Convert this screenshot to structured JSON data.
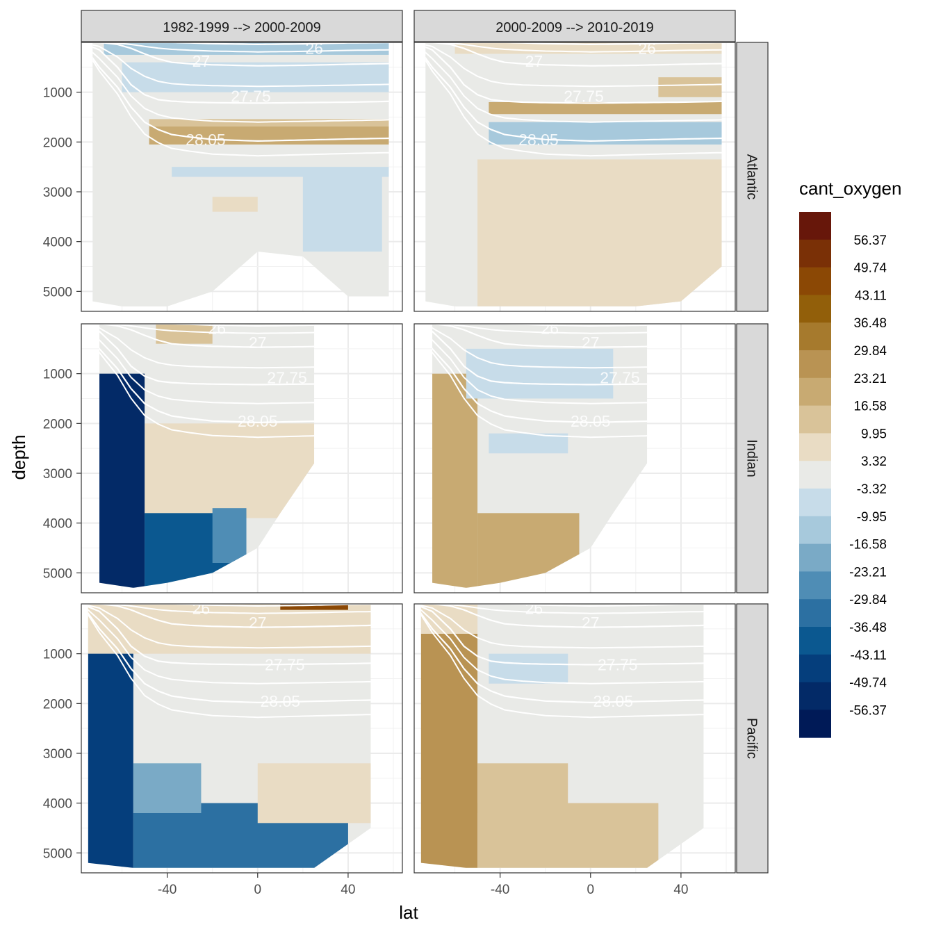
{
  "chart_data": {
    "type": "heatmap",
    "title": "",
    "xlabel": "lat",
    "ylabel": "depth",
    "xlim": [
      -78,
      64
    ],
    "ylim": [
      5400,
      0
    ],
    "x_ticks": [
      -40,
      0,
      40
    ],
    "y_ticks": [
      1000,
      2000,
      3000,
      4000,
      5000
    ],
    "columns": [
      "1982-1999 --> 2000-2009",
      "2000-2009 --> 2010-2019"
    ],
    "rows": [
      "Atlantic",
      "Indian",
      "Pacific"
    ],
    "legend": {
      "title": "cant_oxygen",
      "breaks": [
        "56.37",
        "49.74",
        "43.11",
        "36.48",
        "29.84",
        "23.21",
        "16.58",
        "9.95",
        "3.32",
        "-3.32",
        "-9.95",
        "-16.58",
        "-23.21",
        "-29.84",
        "-36.48",
        "-43.11",
        "-49.74",
        "-56.37"
      ],
      "colors": [
        "#67170a",
        "#7a3006",
        "#8b4805",
        "#925f0a",
        "#a67a2d",
        "#b99353",
        "#c8aa72",
        "#d9c399",
        "#e9dcc4",
        "#e9eae7",
        "#c7dce9",
        "#a7c9dc",
        "#7aaac6",
        "#4f8db5",
        "#2c70a2",
        "#0b5890",
        "#053e7c",
        "#032a67",
        "#001a57"
      ]
    },
    "contour_labels": [
      "26",
      "27",
      "27.75",
      "28.05"
    ],
    "isopycnal_depth_profiles": {
      "lat": [
        -78,
        -70,
        -62,
        -56,
        -50,
        -44,
        -38,
        -30,
        -20,
        0,
        20,
        40,
        64
      ],
      "depth_26": [
        0,
        0,
        0,
        0,
        0,
        0,
        0,
        10,
        25,
        40,
        30,
        10,
        0
      ],
      "depth_27": [
        0,
        0,
        40,
        120,
        230,
        330,
        400,
        430,
        450,
        470,
        460,
        440,
        420
      ],
      "depth_27.75": [
        0,
        150,
        500,
        850,
        1050,
        1150,
        1180,
        1200,
        1210,
        1220,
        1210,
        1200,
        1180
      ],
      "depth_28.05": [
        0,
        500,
        900,
        1300,
        1600,
        1750,
        1850,
        1900,
        1950,
        1980,
        1960,
        1940,
        1920
      ]
    },
    "panels": [
      {
        "row": "Atlantic",
        "column": "1982-1999 --> 2000-2009",
        "label_positions": [
          [
            25,
            120
          ],
          [
            -25,
            380
          ],
          [
            -3,
            1080
          ],
          [
            -23,
            1950
          ]
        ],
        "max_depth": [
          5200,
          5300,
          5300,
          5000,
          4200,
          4300,
          5100,
          5100
        ],
        "max_depth_lat": [
          -73,
          -60,
          -40,
          -20,
          0,
          20,
          40,
          58
        ],
        "regions": [
          {
            "lat": [
              -78,
              64
            ],
            "depth": [
              0,
              5400
            ],
            "value": -1
          },
          {
            "lat": [
              -48,
              62
            ],
            "depth": [
              1680,
              2050
            ],
            "value": 20
          },
          {
            "lat": [
              -48,
              62
            ],
            "depth": [
              1540,
              1690
            ],
            "value": 10
          },
          {
            "lat": [
              -60,
              62
            ],
            "depth": [
              400,
              1000
            ],
            "value": -8
          },
          {
            "lat": [
              -68,
              62
            ],
            "depth": [
              0,
              250
            ],
            "value": -15
          },
          {
            "lat": [
              -38,
              60
            ],
            "depth": [
              2500,
              2700
            ],
            "value": -5
          },
          {
            "lat": [
              20,
              55
            ],
            "depth": [
              2700,
              4200
            ],
            "value": -6
          },
          {
            "lat": [
              -20,
              0
            ],
            "depth": [
              3100,
              3400
            ],
            "value": 5
          }
        ]
      },
      {
        "row": "Atlantic",
        "column": "2000-2009 --> 2010-2019",
        "label_positions": [
          [
            25,
            120
          ],
          [
            -25,
            380
          ],
          [
            -3,
            1080
          ],
          [
            -23,
            1950
          ]
        ],
        "max_depth": [
          5200,
          5300,
          5300,
          5300,
          5300,
          5300,
          5200,
          4500
        ],
        "max_depth_lat": [
          -73,
          -60,
          -40,
          -20,
          0,
          20,
          40,
          58
        ],
        "regions": [
          {
            "lat": [
              -78,
              64
            ],
            "depth": [
              0,
              5400
            ],
            "value": -1
          },
          {
            "lat": [
              -50,
              62
            ],
            "depth": [
              2350,
              5300
            ],
            "value": 6
          },
          {
            "lat": [
              -45,
              62
            ],
            "depth": [
              1200,
              1440
            ],
            "value": 18
          },
          {
            "lat": [
              -45,
              62
            ],
            "depth": [
              1600,
              2050
            ],
            "value": -12
          },
          {
            "lat": [
              -60,
              62
            ],
            "depth": [
              0,
              230
            ],
            "value": 8
          },
          {
            "lat": [
              30,
              60
            ],
            "depth": [
              700,
              1100
            ],
            "value": 12
          }
        ]
      },
      {
        "row": "Indian",
        "column": "1982-1999 --> 2000-2009",
        "label_positions": [
          [
            -18,
            90
          ],
          [
            0,
            380
          ],
          [
            13,
            1080
          ],
          [
            0,
            1950
          ]
        ],
        "max_depth": [
          5200,
          5300,
          5200,
          5000,
          4500,
          3800,
          2800
        ],
        "max_depth_lat": [
          -70,
          -55,
          -40,
          -20,
          0,
          10,
          25
        ],
        "regions": [
          {
            "lat": [
              -70,
              25
            ],
            "depth": [
              0,
              5400
            ],
            "value": -1
          },
          {
            "lat": [
              -50,
              25
            ],
            "depth": [
              2000,
              3900
            ],
            "value": 6
          },
          {
            "lat": [
              -70,
              -50
            ],
            "depth": [
              1000,
              5300
            ],
            "value": -50
          },
          {
            "lat": [
              -50,
              -5
            ],
            "depth": [
              3800,
              5300
            ],
            "value": -40
          },
          {
            "lat": [
              -20,
              -5
            ],
            "depth": [
              3700,
              4800
            ],
            "value": -25
          },
          {
            "lat": [
              -45,
              -20
            ],
            "depth": [
              0,
              400
            ],
            "value": 15
          }
        ]
      },
      {
        "row": "Indian",
        "column": "2000-2009 --> 2010-2019",
        "label_positions": [
          [
            -18,
            90
          ],
          [
            0,
            380
          ],
          [
            13,
            1080
          ],
          [
            0,
            1950
          ]
        ],
        "max_depth": [
          5200,
          5300,
          5200,
          5000,
          4500,
          3800,
          2800
        ],
        "max_depth_lat": [
          -70,
          -55,
          -40,
          -20,
          0,
          10,
          25
        ],
        "regions": [
          {
            "lat": [
              -70,
              25
            ],
            "depth": [
              0,
              5400
            ],
            "value": -1
          },
          {
            "lat": [
              -70,
              -50
            ],
            "depth": [
              1000,
              5300
            ],
            "value": 22
          },
          {
            "lat": [
              -50,
              -5
            ],
            "depth": [
              3800,
              5300
            ],
            "value": 20
          },
          {
            "lat": [
              -45,
              -10
            ],
            "depth": [
              2200,
              2600
            ],
            "value": -6
          },
          {
            "lat": [
              -55,
              10
            ],
            "depth": [
              500,
              1500
            ],
            "value": -8
          }
        ]
      },
      {
        "row": "Pacific",
        "column": "1982-1999 --> 2000-2009",
        "label_positions": [
          [
            -25,
            90
          ],
          [
            0,
            380
          ],
          [
            12,
            1220
          ],
          [
            10,
            1950
          ]
        ],
        "max_depth": [
          5200,
          5300,
          5300,
          5300,
          5300,
          5300,
          4500
        ],
        "max_depth_lat": [
          -75,
          -55,
          -40,
          -20,
          0,
          25,
          50
        ],
        "regions": [
          {
            "lat": [
              -78,
              64
            ],
            "depth": [
              0,
              5400
            ],
            "value": -1
          },
          {
            "lat": [
              -75,
              64
            ],
            "depth": [
              0,
              1000
            ],
            "value": 6
          },
          {
            "lat": [
              -75,
              -55
            ],
            "depth": [
              1000,
              5300
            ],
            "value": -45
          },
          {
            "lat": [
              -55,
              40
            ],
            "depth": [
              4000,
              5300
            ],
            "value": -30
          },
          {
            "lat": [
              -55,
              -25
            ],
            "depth": [
              3200,
              4200
            ],
            "value": -20
          },
          {
            "lat": [
              0,
              50
            ],
            "depth": [
              3200,
              4400
            ],
            "value": 6
          },
          {
            "lat": [
              10,
              40
            ],
            "depth": [
              0,
              120
            ],
            "value": 45
          }
        ]
      },
      {
        "row": "Pacific",
        "column": "2000-2009 --> 2010-2019",
        "label_positions": [
          [
            -25,
            90
          ],
          [
            0,
            380
          ],
          [
            12,
            1220
          ],
          [
            10,
            1950
          ]
        ],
        "max_depth": [
          5200,
          5300,
          5300,
          5300,
          5300,
          5300,
          4500
        ],
        "max_depth_lat": [
          -75,
          -55,
          -40,
          -20,
          0,
          25,
          50
        ],
        "regions": [
          {
            "lat": [
              -78,
              64
            ],
            "depth": [
              0,
              5400
            ],
            "value": -1
          },
          {
            "lat": [
              -75,
              -50
            ],
            "depth": [
              600,
              5300
            ],
            "value": 24
          },
          {
            "lat": [
              -50,
              30
            ],
            "depth": [
              4000,
              5300
            ],
            "value": 14
          },
          {
            "lat": [
              -50,
              -10
            ],
            "depth": [
              3200,
              4200
            ],
            "value": 10
          },
          {
            "lat": [
              -45,
              -10
            ],
            "depth": [
              1000,
              1600
            ],
            "value": -8
          },
          {
            "lat": [
              -75,
              -50
            ],
            "depth": [
              0,
              600
            ],
            "value": 8
          }
        ]
      }
    ]
  }
}
